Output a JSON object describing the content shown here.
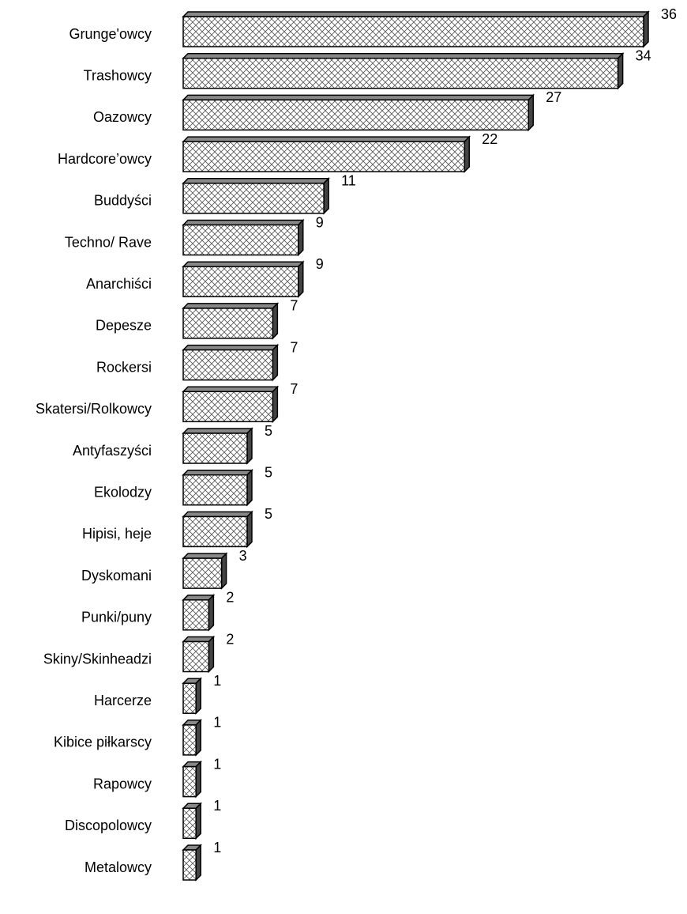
{
  "chart_data": {
    "type": "bar",
    "categories": [
      "Grunge'owcy",
      "Trashowcy",
      "Oazowcy",
      "Hardcore’owcy",
      "Buddyści",
      "Techno/ Rave",
      "Anarchiści",
      "Depesze",
      "Rockersi",
      "Skatersi/Rolkowcy",
      "Antyfaszyści",
      "Ekolodzy",
      "Hipisi, heje",
      "Dyskomani",
      "Punki/puny",
      "Skiny/Skinheadzi",
      "Harcerze",
      "Kibice piłkarscy",
      "Rapowcy",
      "Discopolowcy",
      "Metalowcy"
    ],
    "values": [
      36,
      34,
      27,
      22,
      11,
      9,
      9,
      7,
      7,
      7,
      5,
      5,
      5,
      3,
      2,
      2,
      1,
      1,
      1,
      1,
      1
    ],
    "color": "#ffffff"
  }
}
